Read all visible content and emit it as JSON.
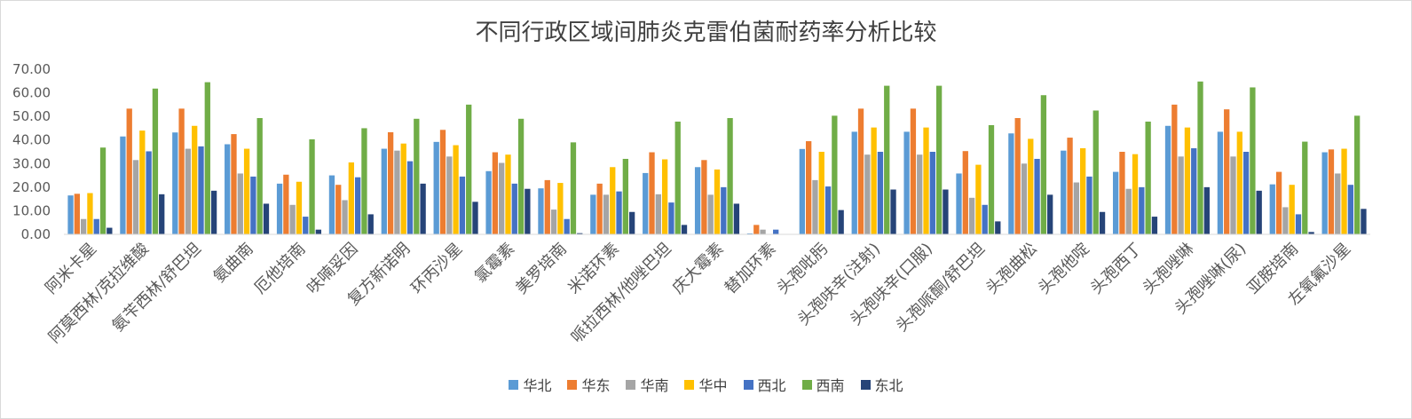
{
  "chart_data": {
    "type": "bar",
    "title": "不同行政区域间肺炎克雷伯菌耐药率分析比较",
    "xlabel": "",
    "ylabel": "",
    "ylim": [
      0,
      70
    ],
    "yticks": [
      "0.00",
      "10.00",
      "20.00",
      "30.00",
      "40.00",
      "50.00",
      "60.00",
      "70.00"
    ],
    "grid": false,
    "legend_position": "bottom",
    "categories": [
      "阿米卡星",
      "阿莫西林/克拉维酸",
      "氨苄西林/舒巴坦",
      "氨曲南",
      "厄他培南",
      "呋喃妥因",
      "复方新诺明",
      "环丙沙星",
      "氯霉素",
      "美罗培南",
      "米诺环素",
      "哌拉西林/他唑巴坦",
      "庆大霉素",
      "替加环素",
      "头孢吡肟",
      "头孢呋辛(注射)",
      "头孢呋辛(口服)",
      "头孢哌酮/舒巴坦",
      "头孢曲松",
      "头孢他啶",
      "头孢西丁",
      "头孢唑啉",
      "头孢唑啉(尿)",
      "亚胺培南",
      "左氧氟沙星"
    ],
    "series": [
      {
        "name": "华北",
        "color": "#5b9bd5",
        "values": [
          16.5,
          41.5,
          43.2,
          38.2,
          21.5,
          25.0,
          36.3,
          39.2,
          26.8,
          19.5,
          16.8,
          26.0,
          28.5,
          0.4,
          36.2,
          43.5,
          43.5,
          25.8,
          42.8,
          35.5,
          26.5,
          46.0,
          43.5,
          21.2,
          34.8
        ]
      },
      {
        "name": "华东",
        "color": "#ed7d31",
        "values": [
          17.2,
          53.3,
          53.3,
          42.5,
          25.3,
          21.0,
          43.3,
          44.3,
          34.8,
          23.0,
          21.5,
          34.8,
          31.5,
          4.0,
          39.5,
          53.3,
          53.3,
          35.3,
          49.3,
          41.0,
          35.0,
          55.0,
          53.0,
          26.5,
          36.0
        ]
      },
      {
        "name": "华南",
        "color": "#a5a5a5",
        "values": [
          6.5,
          31.5,
          36.3,
          25.8,
          12.5,
          14.5,
          35.5,
          33.0,
          30.3,
          10.5,
          16.8,
          17.0,
          16.8,
          2.0,
          23.0,
          33.8,
          33.8,
          15.5,
          30.0,
          22.0,
          19.3,
          33.0,
          33.0,
          11.5,
          25.8
        ]
      },
      {
        "name": "华中",
        "color": "#ffc000",
        "values": [
          17.5,
          44.0,
          46.0,
          36.3,
          22.3,
          30.5,
          38.5,
          37.8,
          33.8,
          21.8,
          28.5,
          31.8,
          27.5,
          0.0,
          35.0,
          45.3,
          45.3,
          29.5,
          40.5,
          36.5,
          34.0,
          45.3,
          43.5,
          21.0,
          36.3
        ]
      },
      {
        "name": "西北",
        "color": "#4472c4",
        "values": [
          6.5,
          35.2,
          37.3,
          24.5,
          7.5,
          24.2,
          31.0,
          24.5,
          21.5,
          6.5,
          18.2,
          13.5,
          20.0,
          2.0,
          20.3,
          35.0,
          35.0,
          12.5,
          32.0,
          24.5,
          20.0,
          36.5,
          35.0,
          8.5,
          21.0
        ]
      },
      {
        "name": "西南",
        "color": "#70ad47",
        "values": [
          36.8,
          61.8,
          64.5,
          49.3,
          40.3,
          45.0,
          49.0,
          55.0,
          49.0,
          39.0,
          32.0,
          47.8,
          49.3,
          0.0,
          50.3,
          63.0,
          63.0,
          46.3,
          59.0,
          52.5,
          47.8,
          64.8,
          62.3,
          39.3,
          50.3
        ]
      },
      {
        "name": "东北",
        "color": "#264478",
        "values": [
          2.8,
          17.0,
          18.5,
          13.0,
          2.0,
          8.5,
          21.5,
          13.8,
          19.3,
          0.5,
          9.5,
          4.0,
          13.0,
          0.0,
          10.3,
          19.0,
          19.0,
          5.5,
          16.8,
          9.5,
          7.5,
          20.0,
          18.5,
          1.0,
          10.8
        ]
      }
    ]
  }
}
